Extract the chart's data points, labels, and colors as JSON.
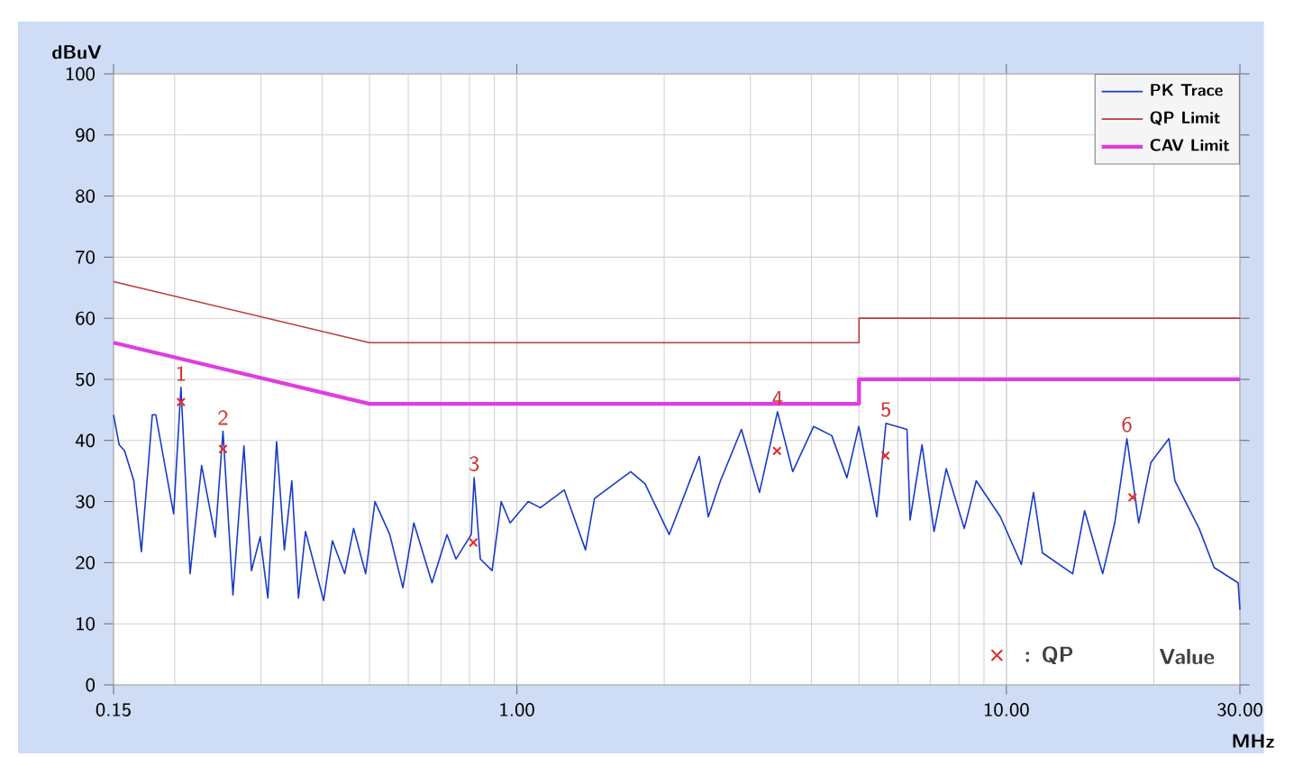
{
  "chart_data": {
    "type": "line",
    "xlabel": "MHz",
    "ylabel": "dBuV",
    "log": "x",
    "grid": true,
    "legend": "top right",
    "xlim": [
      0.15,
      30
    ],
    "xticks": [
      0.15,
      {
        "value": 1,
        "label": "1.00"
      },
      {
        "value": 10,
        "label": "10.00"
      },
      {
        "value": 30,
        "label": "30.00"
      }
    ],
    "ylim": [
      0,
      100
    ],
    "yticks": [
      0,
      10,
      20,
      30,
      40,
      50,
      60,
      70,
      80,
      90,
      100
    ],
    "series": [
      {
        "name": "PK Trace",
        "color": "#1a3bc8",
        "x": [
          0.15,
          0.154,
          0.158,
          0.165,
          0.171,
          0.18,
          0.183,
          0.199,
          0.206,
          0.215,
          0.227,
          0.242,
          0.251,
          0.263,
          0.277,
          0.287,
          0.299,
          0.31,
          0.323,
          0.335,
          0.347,
          0.358,
          0.37,
          0.403,
          0.42,
          0.445,
          0.464,
          0.491,
          0.513,
          0.55,
          0.585,
          0.616,
          0.671,
          0.72,
          0.751,
          0.807,
          0.818,
          0.842,
          0.89,
          0.929,
          0.969,
          1.055,
          1.117,
          1.25,
          1.381,
          1.441,
          1.708,
          1.828,
          2.047,
          2.359,
          2.461,
          2.606,
          2.876,
          3.131,
          3.408,
          3.661,
          4.04,
          4.398,
          4.723,
          4.995,
          5.438,
          5.675,
          6.266,
          6.358,
          6.725,
          7.118,
          7.538,
          8.204,
          8.678,
          9.723,
          10.73,
          11.36,
          11.85,
          13.66,
          14.45,
          15.73,
          16.65,
          17.63,
          18.64,
          19.74,
          21.48,
          22.1,
          24.76,
          26.57,
          29.75,
          30
        ],
        "values": [
          44.2,
          39.3,
          38.3,
          33.4,
          21.8,
          44.2,
          44.2,
          28,
          48.7,
          18.2,
          35.9,
          24.2,
          41.5,
          14.7,
          39.1,
          18.7,
          24.2,
          14.2,
          39.8,
          22.1,
          33.4,
          14.2,
          25.1,
          13.8,
          23.6,
          18.2,
          25.6,
          18.2,
          30,
          24.6,
          15.9,
          26.5,
          16.7,
          24.6,
          20.6,
          24.6,
          33.9,
          20.6,
          18.7,
          30,
          26.5,
          30,
          29,
          31.9,
          22.1,
          30.5,
          34.9,
          32.9,
          24.6,
          37.4,
          27.5,
          33.4,
          41.8,
          31.5,
          44.7,
          34.9,
          42.3,
          40.8,
          33.9,
          42.3,
          27.5,
          42.8,
          41.8,
          27,
          39.3,
          25.1,
          35.4,
          25.6,
          33.4,
          27.5,
          19.7,
          31.5,
          21.6,
          18.2,
          28.5,
          18.2,
          26.5,
          40.3,
          26.5,
          36.4,
          40.3,
          33.4,
          25.6,
          19.2,
          16.7,
          12.3
        ]
      },
      {
        "name": "QP Limit",
        "color": "#b83c3c",
        "x": [
          0.15,
          0.5,
          5,
          5,
          30
        ],
        "values": [
          66,
          56,
          56,
          60,
          60
        ]
      },
      {
        "name": "CAV Limit",
        "color": "#e03ce0",
        "x": [
          0.15,
          0.5,
          5,
          5,
          30
        ],
        "values": [
          56,
          46,
          46,
          50,
          50
        ]
      },
      {
        "name": ": QP",
        "type": "scatter",
        "marker": "cross",
        "color": "#e03030",
        "x": [
          0.206,
          0.251,
          0.815,
          3.4,
          5.66,
          18.1
        ],
        "values": [
          46.3,
          38.6,
          23.3,
          38.3,
          37.5,
          30.7
        ]
      }
    ],
    "annotations": [
      {
        "text": "1",
        "x": 0.206,
        "y": 48.7
      },
      {
        "text": "2",
        "x": 0.251,
        "y": 41.5
      },
      {
        "text": "3",
        "x": 0.818,
        "y": 33.9
      },
      {
        "text": "4",
        "x": 3.408,
        "y": 44.7
      },
      {
        "text": "5",
        "x": 5.675,
        "y": 42.8
      },
      {
        "text": "6",
        "x": 17.63,
        "y": 40.3
      },
      "Value"
    ]
  }
}
